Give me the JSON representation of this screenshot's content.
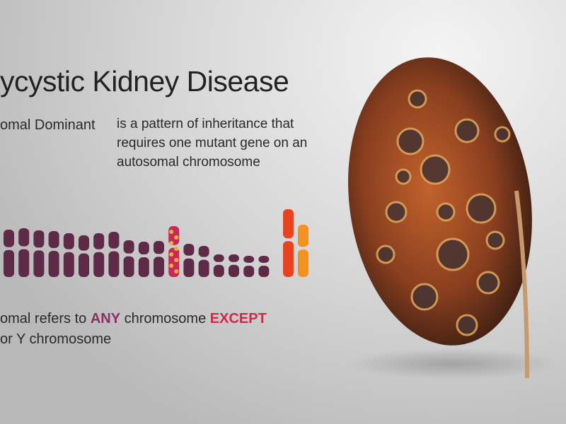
{
  "title": "ycystic Kidney Disease",
  "term": "omal Dominant",
  "definition": [
    "is a pattern of inheritance that",
    "requires one mutant gene on an",
    "autosomal chromosome"
  ],
  "note": {
    "line1": [
      "omal refers to ",
      "ANY",
      " chromosome ",
      "EXCEPT"
    ],
    "line2": "or Y chromosome"
  }
}
